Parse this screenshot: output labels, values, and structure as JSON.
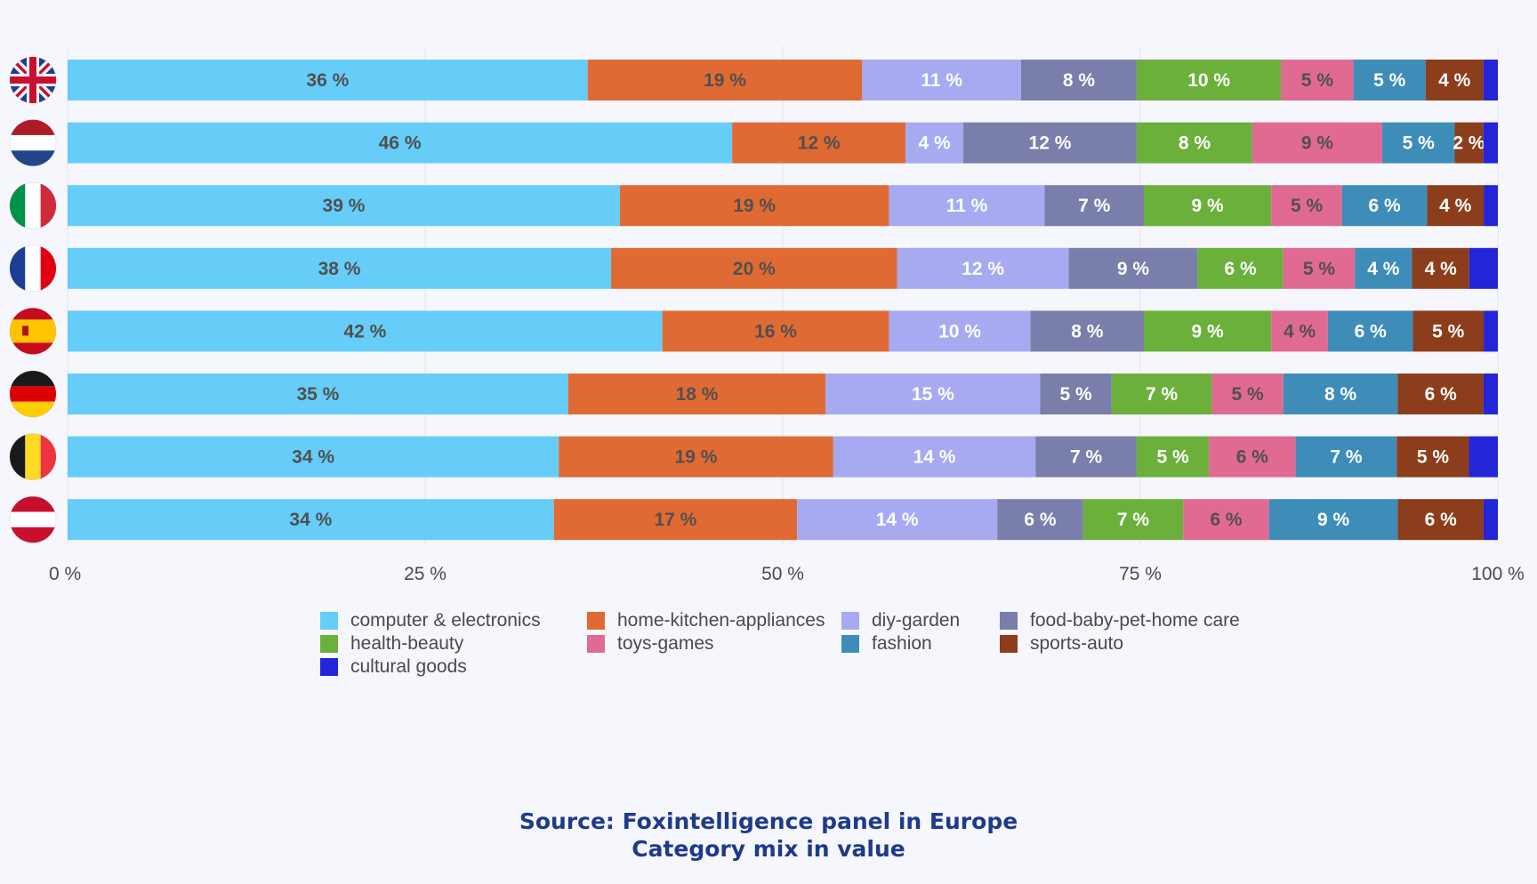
{
  "chart_data": {
    "type": "bar",
    "orientation": "horizontal",
    "stacked": true,
    "categories": [
      "United Kingdom",
      "Netherlands",
      "Italy",
      "France",
      "Spain",
      "Germany",
      "Belgium",
      "Austria"
    ],
    "series": [
      {
        "name": "computer & electronics",
        "color": "#66cdf8",
        "label_color": "#505050",
        "values": [
          36,
          46,
          39,
          38,
          42,
          35,
          34,
          34
        ]
      },
      {
        "name": "home-kitchen-appliances",
        "color": "#e06a33",
        "label_color": "#505050",
        "values": [
          19,
          12,
          19,
          20,
          16,
          18,
          19,
          17
        ]
      },
      {
        "name": "diy-garden",
        "color": "#a7aaf0",
        "label_color": "#ffffff",
        "values": [
          11,
          4,
          11,
          12,
          10,
          15,
          14,
          14
        ]
      },
      {
        "name": "food-baby-pet-home care",
        "color": "#7a7eaa",
        "label_color": "#ffffff",
        "values": [
          8,
          12,
          7,
          9,
          8,
          5,
          7,
          6
        ]
      },
      {
        "name": "health-beauty",
        "color": "#6bb03b",
        "label_color": "#ffffff",
        "values": [
          10,
          8,
          9,
          6,
          9,
          7,
          5,
          7
        ]
      },
      {
        "name": "toys-games",
        "color": "#e16a92",
        "label_color": "#505050",
        "values": [
          5,
          9,
          5,
          5,
          4,
          5,
          6,
          6
        ]
      },
      {
        "name": "fashion",
        "color": "#3e8db8",
        "label_color": "#ffffff",
        "values": [
          5,
          5,
          6,
          4,
          6,
          8,
          7,
          9
        ]
      },
      {
        "name": "sports-auto",
        "color": "#8c3d1b",
        "label_color": "#ffffff",
        "values": [
          4,
          2,
          4,
          4,
          5,
          6,
          5,
          6
        ]
      },
      {
        "name": "cultural goods",
        "color": "#2424d8",
        "label_color": "#ffffff",
        "values": [
          1,
          1,
          1,
          2,
          1,
          1,
          2,
          1
        ]
      }
    ],
    "xlim": [
      0,
      100
    ],
    "x_ticks": [
      "0 %",
      "25 %",
      "50 %",
      "75 %",
      "100 %"
    ],
    "label_suffix": " %",
    "unlabeled_series": [
      "cultural goods"
    ],
    "grid": true,
    "legend_position": "bottom"
  },
  "flags": [
    {
      "country": "United Kingdom",
      "icon": "uk-flag-icon"
    },
    {
      "country": "Netherlands",
      "icon": "netherlands-flag-icon"
    },
    {
      "country": "Italy",
      "icon": "italy-flag-icon"
    },
    {
      "country": "France",
      "icon": "france-flag-icon"
    },
    {
      "country": "Spain",
      "icon": "spain-flag-icon"
    },
    {
      "country": "Germany",
      "icon": "germany-flag-icon"
    },
    {
      "country": "Belgium",
      "icon": "belgium-flag-icon"
    },
    {
      "country": "Austria",
      "icon": "austria-flag-icon"
    }
  ],
  "colors": {
    "background": "#f6f6fd",
    "grid": "#e4e4f0",
    "source_text": "#1e3a8a"
  },
  "source": {
    "line1": "Source: Foxintelligence panel in Europe",
    "line2": "Category mix in value"
  }
}
